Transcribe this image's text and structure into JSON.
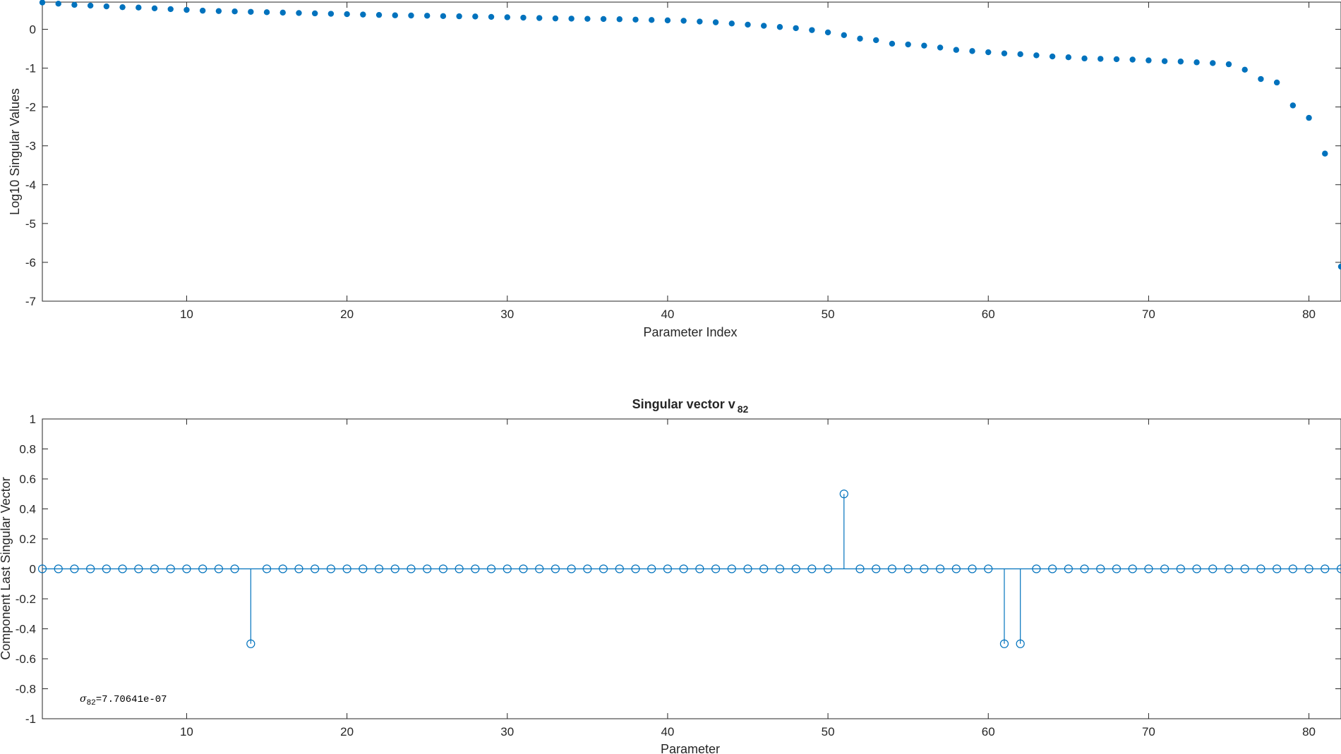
{
  "chart_data": [
    {
      "type": "scatter",
      "title": "",
      "xlabel": "Parameter Index",
      "ylabel": "Log10 Singular Values",
      "xlim": [
        1,
        82
      ],
      "ylim": [
        -7,
        0.7
      ],
      "xticks": [
        10,
        20,
        30,
        40,
        50,
        60,
        70,
        80
      ],
      "yticks": [
        0,
        -1,
        -2,
        -3,
        -4,
        -5,
        -6,
        -7
      ],
      "grid": false,
      "marker_color": "#0072BD",
      "series": [
        {
          "x": [
            1,
            2,
            3,
            4,
            5,
            6,
            7,
            8,
            9,
            10,
            11,
            12,
            13,
            14,
            15,
            16,
            17,
            18,
            19,
            20,
            21,
            22,
            23,
            24,
            25,
            26,
            27,
            28,
            29,
            30,
            31,
            32,
            33,
            34,
            35,
            36,
            37,
            38,
            39,
            40,
            41,
            42,
            43,
            44,
            45,
            46,
            47,
            48,
            49,
            50,
            51,
            52,
            53,
            54,
            55,
            56,
            57,
            58,
            59,
            60,
            61,
            62,
            63,
            64,
            65,
            66,
            67,
            68,
            69,
            70,
            71,
            72,
            73,
            74,
            75,
            76,
            77,
            78,
            79,
            80,
            81,
            82
          ],
          "values": [
            0.69,
            0.66,
            0.63,
            0.61,
            0.59,
            0.57,
            0.56,
            0.54,
            0.52,
            0.5,
            0.48,
            0.47,
            0.46,
            0.45,
            0.44,
            0.43,
            0.42,
            0.41,
            0.4,
            0.39,
            0.38,
            0.37,
            0.36,
            0.355,
            0.35,
            0.34,
            0.335,
            0.33,
            0.32,
            0.31,
            0.3,
            0.29,
            0.28,
            0.275,
            0.27,
            0.265,
            0.26,
            0.25,
            0.24,
            0.23,
            0.22,
            0.2,
            0.18,
            0.15,
            0.12,
            0.09,
            0.06,
            0.03,
            -0.02,
            -0.08,
            -0.15,
            -0.24,
            -0.28,
            -0.37,
            -0.39,
            -0.42,
            -0.47,
            -0.53,
            -0.56,
            -0.59,
            -0.62,
            -0.64,
            -0.67,
            -0.7,
            -0.72,
            -0.75,
            -0.76,
            -0.77,
            -0.78,
            -0.8,
            -0.82,
            -0.83,
            -0.85,
            -0.87,
            -0.9,
            -1.04,
            -1.28,
            -1.37,
            -1.96,
            -2.28,
            -3.2,
            -6.11
          ]
        }
      ]
    },
    {
      "type": "stem",
      "title": "Singular vector v",
      "title_subscript": "82",
      "xlabel": "Parameter",
      "ylabel": "Component Last Singular Vector",
      "xlim": [
        1,
        82
      ],
      "ylim": [
        -1,
        1
      ],
      "xticks": [
        10,
        20,
        30,
        40,
        50,
        60,
        70,
        80
      ],
      "yticks": [
        1,
        0.8,
        0.6,
        0.4,
        0.2,
        0,
        -0.2,
        -0.4,
        -0.6,
        -0.8,
        -1
      ],
      "grid": false,
      "marker_color": "#0072BD",
      "annotation": {
        "sigma_symbol": "σ",
        "subscript": "82",
        "text": "=7.70641e-07"
      },
      "series": [
        {
          "x": [
            1,
            2,
            3,
            4,
            5,
            6,
            7,
            8,
            9,
            10,
            11,
            12,
            13,
            14,
            15,
            16,
            17,
            18,
            19,
            20,
            21,
            22,
            23,
            24,
            25,
            26,
            27,
            28,
            29,
            30,
            31,
            32,
            33,
            34,
            35,
            36,
            37,
            38,
            39,
            40,
            41,
            42,
            43,
            44,
            45,
            46,
            47,
            48,
            49,
            50,
            51,
            52,
            53,
            54,
            55,
            56,
            57,
            58,
            59,
            60,
            61,
            62,
            63,
            64,
            65,
            66,
            67,
            68,
            69,
            70,
            71,
            72,
            73,
            74,
            75,
            76,
            77,
            78,
            79,
            80,
            81,
            82
          ],
          "values": [
            0,
            0,
            0,
            0,
            0,
            0,
            0,
            0,
            0,
            0,
            0,
            0,
            0,
            -0.5,
            0,
            0,
            0,
            0,
            0,
            0,
            0,
            0,
            0,
            0,
            0,
            0,
            0,
            0,
            0,
            0,
            0,
            0,
            0,
            0,
            0,
            0,
            0,
            0,
            0,
            0,
            0,
            0,
            0,
            0,
            0,
            0,
            0,
            0,
            0,
            0,
            0.5,
            0,
            0,
            0,
            0,
            0,
            0,
            0,
            0,
            0,
            -0.5,
            -0.5,
            0,
            0,
            0,
            0,
            0,
            0,
            0,
            0,
            0,
            0,
            0,
            0,
            0,
            0,
            0,
            0,
            0,
            0,
            0,
            0
          ]
        }
      ]
    }
  ]
}
